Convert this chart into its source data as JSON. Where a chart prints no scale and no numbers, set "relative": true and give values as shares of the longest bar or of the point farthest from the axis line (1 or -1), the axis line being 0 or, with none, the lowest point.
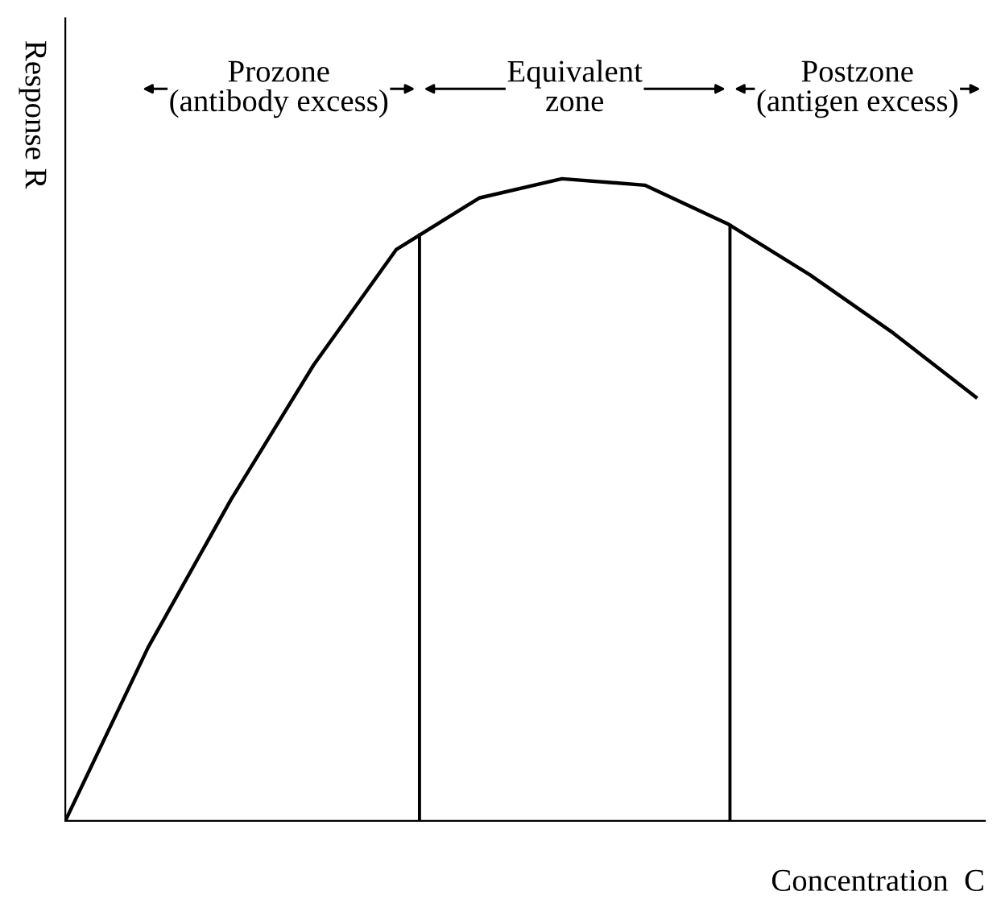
{
  "chart_data": {
    "type": "line",
    "relative": true,
    "xlabel": "Concentration  C",
    "ylabel": "Response R",
    "categories": [
      null,
      null,
      null,
      null,
      null,
      null,
      null,
      null,
      null,
      null,
      null,
      null
    ],
    "series": [
      {
        "color": "#000000",
        "values": [
          0,
          0.27,
          0.5,
          0.71,
          0.89,
          0.97,
          1,
          0.99,
          0.93,
          0.85,
          0.76,
          0.66
        ]
      }
    ],
    "annotations": [
      "Prozone\n(antibody excess)",
      "Equivalent\nzone",
      "Postzone\n(antigen excess)"
    ],
    "legend": false,
    "marker": "none",
    "line_style": "solid"
  }
}
